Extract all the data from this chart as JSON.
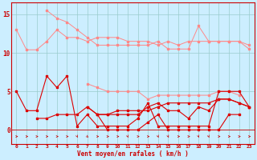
{
  "xlabel": "Vent moyen/en rafales ( km/h )",
  "background_color": "#cceeff",
  "grid_color": "#99cccc",
  "x": [
    0,
    1,
    2,
    3,
    4,
    5,
    6,
    7,
    8,
    9,
    10,
    11,
    12,
    13,
    14,
    15,
    16,
    17,
    18,
    19,
    20,
    21,
    22,
    23
  ],
  "series": [
    {
      "color": "#ff8888",
      "lw": 0.7,
      "values": [
        13,
        10.4,
        10.4,
        11.5,
        13,
        12,
        12,
        11.5,
        12,
        12,
        12,
        11.5,
        11.5,
        11.5,
        11,
        11.5,
        11,
        11.5,
        11.5,
        11.5,
        11.5,
        11.5,
        11.5,
        10.5
      ]
    },
    {
      "color": "#ff8888",
      "lw": 0.7,
      "values": [
        null,
        null,
        null,
        15.5,
        14.5,
        14,
        13,
        12,
        11,
        11,
        11,
        11,
        11,
        11,
        11.5,
        10.5,
        10.5,
        10.5,
        13.5,
        11.5,
        11.5,
        11.5,
        11.5,
        11
      ]
    },
    {
      "color": "#ff8888",
      "lw": 0.7,
      "values": [
        null,
        null,
        null,
        null,
        null,
        null,
        null,
        6,
        5.5,
        5,
        5,
        5,
        5,
        4,
        4.5,
        4.5,
        4.5,
        4.5,
        4.5,
        4.5,
        5,
        5,
        4.5,
        null
      ]
    },
    {
      "color": "#dd0000",
      "lw": 0.8,
      "values": [
        5,
        2.5,
        2.5,
        7,
        5.5,
        7,
        0.5,
        2,
        0.5,
        0.5,
        0.5,
        0.5,
        1.5,
        3.5,
        0.5,
        0.5,
        0.5,
        0.5,
        0.5,
        0.5,
        5,
        5,
        5,
        3
      ]
    },
    {
      "color": "#dd0000",
      "lw": 0.8,
      "values": [
        null,
        null,
        1.5,
        1.5,
        2,
        2,
        2,
        3,
        2,
        2,
        2,
        2,
        2,
        3,
        3.5,
        2.5,
        2.5,
        1.5,
        3,
        2.5,
        4,
        4,
        3.5,
        3
      ]
    },
    {
      "color": "#dd0000",
      "lw": 0.8,
      "values": [
        null,
        null,
        null,
        null,
        null,
        null,
        null,
        null,
        2,
        2,
        2.5,
        2.5,
        2.5,
        2.5,
        3,
        3.5,
        3.5,
        3.5,
        3.5,
        3.5,
        4,
        4,
        3.5,
        3
      ]
    },
    {
      "color": "#dd0000",
      "lw": 0.8,
      "values": [
        null,
        null,
        null,
        null,
        null,
        null,
        null,
        3,
        2,
        0,
        0,
        0,
        0,
        1,
        2,
        0,
        0,
        0,
        0,
        0,
        0,
        2,
        2,
        null
      ]
    }
  ],
  "arrow_directions": [
    0,
    0,
    0,
    0,
    0,
    0,
    2,
    1,
    0,
    0,
    0,
    2,
    0,
    0,
    2,
    2,
    0,
    0,
    2,
    2,
    0,
    0,
    0,
    0
  ],
  "ylim": [
    -1.8,
    16.5
  ],
  "yticks": [
    0,
    5,
    10,
    15
  ],
  "text_color": "#cc0000",
  "spine_color": "#cc0000"
}
